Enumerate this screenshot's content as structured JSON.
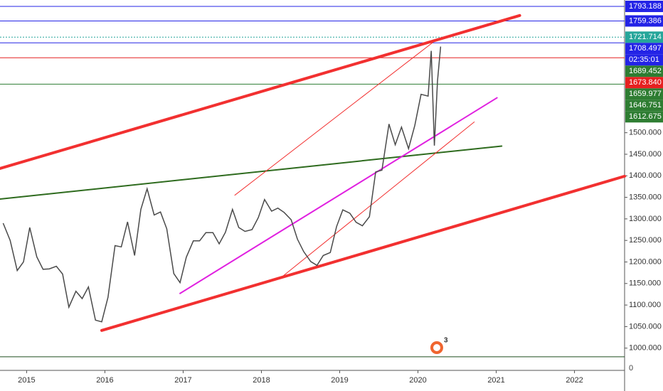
{
  "chart_data": {
    "type": "line",
    "xlim": [
      2014.66,
      2022.64
    ],
    "ylim": [
      950,
      1808
    ],
    "xticks": [
      2015,
      2016,
      2017,
      2018,
      2019,
      2020,
      2021,
      2022
    ],
    "yticks": [
      {
        "value": 1000,
        "label": "1000.000"
      },
      {
        "value": 1050,
        "label": "1050.000"
      },
      {
        "value": 1100,
        "label": "1100.000"
      },
      {
        "value": 1150,
        "label": "1150.000"
      },
      {
        "value": 1200,
        "label": "1200.000"
      },
      {
        "value": 1250,
        "label": "1250.000"
      },
      {
        "value": 1300,
        "label": "1300.000"
      },
      {
        "value": 1350,
        "label": "1350.000"
      },
      {
        "value": 1400,
        "label": "1400.000"
      },
      {
        "value": 1450,
        "label": "1450.000"
      },
      {
        "value": 1500,
        "label": "1500.000"
      }
    ],
    "axis_floor_label": "0",
    "badge": "3",
    "series": [
      {
        "color": "#4a4a4a",
        "x": [
          2014.7,
          2014.79,
          2014.88,
          2014.96,
          2015.04,
          2015.13,
          2015.21,
          2015.29,
          2015.38,
          2015.46,
          2015.54,
          2015.63,
          2015.71,
          2015.79,
          2015.88,
          2015.96,
          2016.04,
          2016.13,
          2016.21,
          2016.29,
          2016.38,
          2016.46,
          2016.54,
          2016.63,
          2016.71,
          2016.79,
          2016.88,
          2016.96,
          2017.04,
          2017.13,
          2017.21,
          2017.29,
          2017.38,
          2017.46,
          2017.54,
          2017.63,
          2017.71,
          2017.79,
          2017.88,
          2017.96,
          2018.04,
          2018.13,
          2018.21,
          2018.29,
          2018.38,
          2018.46,
          2018.54,
          2018.63,
          2018.71,
          2018.79,
          2018.88,
          2018.96,
          2019.04,
          2019.13,
          2019.21,
          2019.29,
          2019.38,
          2019.46,
          2019.54,
          2019.63,
          2019.71,
          2019.79,
          2019.88,
          2019.96,
          2020.04,
          2020.13,
          2020.17,
          2020.21,
          2020.25,
          2020.29
        ],
        "values": [
          1290,
          1250,
          1180,
          1200,
          1280,
          1212,
          1183,
          1184,
          1190,
          1172,
          1095,
          1132,
          1115,
          1142,
          1065,
          1061,
          1118,
          1238,
          1235,
          1293,
          1215,
          1322,
          1370,
          1309,
          1316,
          1277,
          1173,
          1152,
          1211,
          1249,
          1249,
          1268,
          1268,
          1242,
          1269,
          1322,
          1280,
          1271,
          1275,
          1303,
          1345,
          1318,
          1325,
          1315,
          1298,
          1253,
          1224,
          1201,
          1192,
          1215,
          1222,
          1282,
          1321,
          1313,
          1292,
          1284,
          1305,
          1409,
          1413,
          1520,
          1472,
          1513,
          1463,
          1517,
          1589,
          1585,
          1690,
          1470,
          1620,
          1700
        ]
      }
    ],
    "trendlines": [
      {
        "color": "#f23030",
        "width": 4,
        "x": [
          2014.66,
          2021.3
        ],
        "y": [
          1417,
          1772
        ]
      },
      {
        "color": "#f23030",
        "width": 4,
        "x": [
          2015.96,
          2022.64
        ],
        "y": [
          1041,
          1399
        ]
      },
      {
        "color": "#2e6b1e",
        "width": 2,
        "x": [
          2014.66,
          2021.07
        ],
        "y": [
          1346,
          1469
        ]
      },
      {
        "color": "#e020e0",
        "width": 2,
        "x": [
          2016.96,
          2021.01
        ],
        "y": [
          1127,
          1581
        ]
      },
      {
        "color": "#f23030",
        "width": 1,
        "x": [
          2017.66,
          2020.25
        ],
        "y": [
          1355,
          1718
        ]
      },
      {
        "color": "#f23030",
        "width": 1,
        "x": [
          2018.26,
          2020.72
        ],
        "y": [
          1165,
          1525
        ]
      }
    ],
    "hlines": [
      {
        "value": 1793.188,
        "color": "#2323e6"
      },
      {
        "value": 1759.386,
        "color": "#2323e6"
      },
      {
        "value": 1721.714,
        "color": "#26a69a",
        "dash": true
      },
      {
        "value": 1708.497,
        "color": "#2323e6"
      },
      {
        "value": 1673.84,
        "color": "#e62020"
      },
      {
        "value": 1612.675,
        "color": "#2e7d32"
      },
      {
        "value": 980,
        "color": "#1e4d1e"
      }
    ],
    "price_labels": [
      {
        "value": 1793.188,
        "label": "1793.188",
        "color": "#2323e6"
      },
      {
        "value": 1759.386,
        "label": "1759.386",
        "color": "#2323e6"
      },
      {
        "value": 1721.714,
        "label": "1721.714",
        "color": "#26a69a"
      },
      {
        "value": 1708.497,
        "label": "1708.497",
        "color": "#2323e6",
        "countdown": "02:35:01"
      },
      {
        "value": 1689.452,
        "label": "1689.452",
        "color": "#2e7d32"
      },
      {
        "value": 1673.84,
        "label": "1673.840",
        "color": "#e62020"
      },
      {
        "value": 1659.977,
        "label": "1659.977",
        "color": "#2e7d32"
      },
      {
        "value": 1646.751,
        "label": "1646.751",
        "color": "#2e7d32"
      },
      {
        "value": 1612.675,
        "label": "1612.675",
        "color": "#2e7d32"
      }
    ]
  }
}
